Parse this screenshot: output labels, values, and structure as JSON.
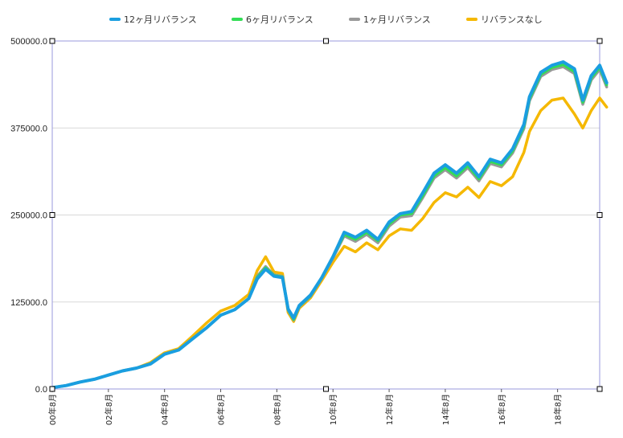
{
  "chart_data": {
    "type": "line",
    "title": "",
    "xlabel": "",
    "ylabel": "",
    "ylim": [
      0,
      500000
    ],
    "yticks": [
      "0.0",
      "125000.0",
      "250000.0",
      "375000.0",
      "500000.0"
    ],
    "yvalues": [
      0,
      125000,
      250000,
      375000,
      500000
    ],
    "xticks": [
      "00年8月",
      "02年8月",
      "04年8月",
      "06年8月",
      "08年8月",
      "10年8月",
      "12年8月",
      "14年8月",
      "16年8月",
      "18年8月"
    ],
    "xlim": [
      0,
      19.5
    ],
    "grid": "horizontal",
    "legend_position": "top",
    "series": [
      {
        "name": "12ヶ月リバランス",
        "color": "#1a9ee0",
        "points": [
          [
            0,
            2000
          ],
          [
            0.5,
            5000
          ],
          [
            1,
            10000
          ],
          [
            1.5,
            14000
          ],
          [
            2,
            20000
          ],
          [
            2.5,
            26000
          ],
          [
            3,
            30000
          ],
          [
            3.5,
            36000
          ],
          [
            4,
            50000
          ],
          [
            4.5,
            56000
          ],
          [
            5,
            72000
          ],
          [
            5.5,
            88000
          ],
          [
            6,
            106000
          ],
          [
            6.5,
            114000
          ],
          [
            7,
            130000
          ],
          [
            7.3,
            158000
          ],
          [
            7.6,
            172000
          ],
          [
            7.9,
            162000
          ],
          [
            8.2,
            160000
          ],
          [
            8.4,
            115000
          ],
          [
            8.6,
            102000
          ],
          [
            8.8,
            120000
          ],
          [
            9.2,
            135000
          ],
          [
            9.6,
            160000
          ],
          [
            10,
            190000
          ],
          [
            10.4,
            225000
          ],
          [
            10.8,
            218000
          ],
          [
            11.2,
            228000
          ],
          [
            11.6,
            215000
          ],
          [
            12,
            240000
          ],
          [
            12.4,
            252000
          ],
          [
            12.8,
            255000
          ],
          [
            13.2,
            282000
          ],
          [
            13.6,
            310000
          ],
          [
            14,
            322000
          ],
          [
            14.4,
            310000
          ],
          [
            14.8,
            325000
          ],
          [
            15.2,
            305000
          ],
          [
            15.6,
            330000
          ],
          [
            16,
            325000
          ],
          [
            16.4,
            345000
          ],
          [
            16.8,
            380000
          ],
          [
            17,
            420000
          ],
          [
            17.4,
            455000
          ],
          [
            17.8,
            465000
          ],
          [
            18.2,
            470000
          ],
          [
            18.6,
            460000
          ],
          [
            18.9,
            415000
          ],
          [
            19.2,
            450000
          ],
          [
            19.5,
            465000
          ],
          [
            19.75,
            440000
          ]
        ]
      },
      {
        "name": "6ヶ月リバランス",
        "color": "#33dd55",
        "points": [
          [
            0,
            2000
          ],
          [
            0.5,
            5000
          ],
          [
            1,
            10000
          ],
          [
            1.5,
            14000
          ],
          [
            2,
            20000
          ],
          [
            2.5,
            26000
          ],
          [
            3,
            30000
          ],
          [
            3.5,
            36000
          ],
          [
            4,
            50000
          ],
          [
            4.5,
            56000
          ],
          [
            5,
            72000
          ],
          [
            5.5,
            88000
          ],
          [
            6,
            106000
          ],
          [
            6.5,
            114000
          ],
          [
            7,
            130000
          ],
          [
            7.3,
            160000
          ],
          [
            7.6,
            174000
          ],
          [
            7.9,
            163000
          ],
          [
            8.2,
            161000
          ],
          [
            8.4,
            114000
          ],
          [
            8.6,
            100000
          ],
          [
            8.8,
            119000
          ],
          [
            9.2,
            134000
          ],
          [
            9.6,
            160000
          ],
          [
            10,
            190000
          ],
          [
            10.4,
            222000
          ],
          [
            10.8,
            215000
          ],
          [
            11.2,
            225000
          ],
          [
            11.6,
            213000
          ],
          [
            12,
            237000
          ],
          [
            12.4,
            250000
          ],
          [
            12.8,
            252000
          ],
          [
            13.2,
            278000
          ],
          [
            13.6,
            306000
          ],
          [
            14,
            318000
          ],
          [
            14.4,
            306000
          ],
          [
            14.8,
            321000
          ],
          [
            15.2,
            302000
          ],
          [
            15.6,
            327000
          ],
          [
            16,
            322000
          ],
          [
            16.4,
            342000
          ],
          [
            16.8,
            377000
          ],
          [
            17,
            417000
          ],
          [
            17.4,
            452000
          ],
          [
            17.8,
            462000
          ],
          [
            18.2,
            466000
          ],
          [
            18.6,
            456000
          ],
          [
            18.9,
            412000
          ],
          [
            19.2,
            447000
          ],
          [
            19.5,
            462000
          ],
          [
            19.75,
            437000
          ]
        ]
      },
      {
        "name": "1ヶ月リバランス",
        "color": "#999999",
        "points": [
          [
            0,
            2000
          ],
          [
            0.5,
            5000
          ],
          [
            1,
            10000
          ],
          [
            1.5,
            14000
          ],
          [
            2,
            20000
          ],
          [
            2.5,
            26000
          ],
          [
            3,
            30000
          ],
          [
            3.5,
            36000
          ],
          [
            4,
            50000
          ],
          [
            4.5,
            56000
          ],
          [
            5,
            72000
          ],
          [
            5.5,
            88000
          ],
          [
            6,
            106000
          ],
          [
            6.5,
            114000
          ],
          [
            7,
            130000
          ],
          [
            7.3,
            162000
          ],
          [
            7.6,
            176000
          ],
          [
            7.9,
            164000
          ],
          [
            8.2,
            162000
          ],
          [
            8.4,
            113000
          ],
          [
            8.6,
            99000
          ],
          [
            8.8,
            118000
          ],
          [
            9.2,
            133000
          ],
          [
            9.6,
            159000
          ],
          [
            10,
            188000
          ],
          [
            10.4,
            220000
          ],
          [
            10.8,
            212000
          ],
          [
            11.2,
            222000
          ],
          [
            11.6,
            210000
          ],
          [
            12,
            234000
          ],
          [
            12.4,
            247000
          ],
          [
            12.8,
            249000
          ],
          [
            13.2,
            275000
          ],
          [
            13.6,
            303000
          ],
          [
            14,
            315000
          ],
          [
            14.4,
            303000
          ],
          [
            14.8,
            318000
          ],
          [
            15.2,
            299000
          ],
          [
            15.6,
            324000
          ],
          [
            16,
            319000
          ],
          [
            16.4,
            339000
          ],
          [
            16.8,
            374000
          ],
          [
            17,
            414000
          ],
          [
            17.4,
            449000
          ],
          [
            17.8,
            459000
          ],
          [
            18.2,
            463000
          ],
          [
            18.6,
            453000
          ],
          [
            18.9,
            409000
          ],
          [
            19.2,
            444000
          ],
          [
            19.5,
            459000
          ],
          [
            19.75,
            434000
          ]
        ]
      },
      {
        "name": "リバランスなし",
        "color": "#f5b800",
        "points": [
          [
            0,
            2000
          ],
          [
            0.5,
            5000
          ],
          [
            1,
            10000
          ],
          [
            1.5,
            14000
          ],
          [
            2,
            20000
          ],
          [
            2.5,
            26000
          ],
          [
            3,
            30000
          ],
          [
            3.5,
            38000
          ],
          [
            4,
            52000
          ],
          [
            4.5,
            58000
          ],
          [
            5,
            76000
          ],
          [
            5.5,
            95000
          ],
          [
            6,
            112000
          ],
          [
            6.5,
            120000
          ],
          [
            7,
            136000
          ],
          [
            7.3,
            170000
          ],
          [
            7.6,
            190000
          ],
          [
            7.9,
            168000
          ],
          [
            8.2,
            166000
          ],
          [
            8.4,
            110000
          ],
          [
            8.6,
            97000
          ],
          [
            8.8,
            116000
          ],
          [
            9.2,
            131000
          ],
          [
            9.6,
            156000
          ],
          [
            10,
            182000
          ],
          [
            10.4,
            205000
          ],
          [
            10.8,
            197000
          ],
          [
            11.2,
            210000
          ],
          [
            11.6,
            200000
          ],
          [
            12,
            220000
          ],
          [
            12.4,
            230000
          ],
          [
            12.8,
            228000
          ],
          [
            13.2,
            245000
          ],
          [
            13.6,
            268000
          ],
          [
            14,
            282000
          ],
          [
            14.4,
            276000
          ],
          [
            14.8,
            290000
          ],
          [
            15.2,
            275000
          ],
          [
            15.6,
            298000
          ],
          [
            16,
            292000
          ],
          [
            16.4,
            305000
          ],
          [
            16.8,
            340000
          ],
          [
            17,
            370000
          ],
          [
            17.4,
            400000
          ],
          [
            17.8,
            415000
          ],
          [
            18.2,
            418000
          ],
          [
            18.6,
            395000
          ],
          [
            18.9,
            375000
          ],
          [
            19.2,
            400000
          ],
          [
            19.5,
            418000
          ],
          [
            19.75,
            405000
          ]
        ]
      }
    ]
  }
}
